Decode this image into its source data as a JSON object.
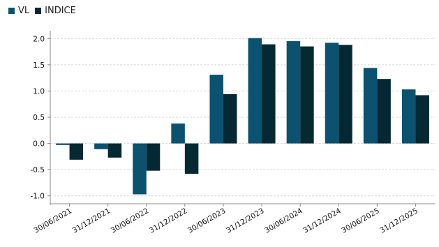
{
  "chart_data": {
    "type": "bar",
    "title": "",
    "xlabel": "",
    "ylabel": "",
    "categories": [
      "30/06/2021",
      "31/12/2021",
      "30/06/2022",
      "31/12/2022",
      "30/06/2023",
      "31/12/2023",
      "30/06/2024",
      "31/12/2024",
      "30/06/2025",
      "31/12/2025"
    ],
    "series": [
      {
        "name": "VL",
        "color": "#0b5170",
        "values": [
          -0.03,
          -0.11,
          -0.97,
          0.38,
          1.31,
          2.01,
          1.95,
          1.92,
          1.44,
          1.03
        ]
      },
      {
        "name": "INDICE",
        "color": "#052933",
        "values": [
          -0.31,
          -0.27,
          -0.52,
          -0.58,
          0.94,
          1.89,
          1.85,
          1.88,
          1.23,
          0.92
        ]
      }
    ],
    "ylim": [
      -1.15,
      2.15
    ],
    "yticks": [
      -1.0,
      -0.5,
      0.0,
      0.5,
      1.0,
      1.5,
      2.0
    ],
    "ytick_labels": [
      "-1.0",
      "-0.5",
      "0.0",
      "0.5",
      "1.0",
      "1.5",
      "2.0"
    ],
    "grid": true,
    "legend_position": "top-left"
  }
}
